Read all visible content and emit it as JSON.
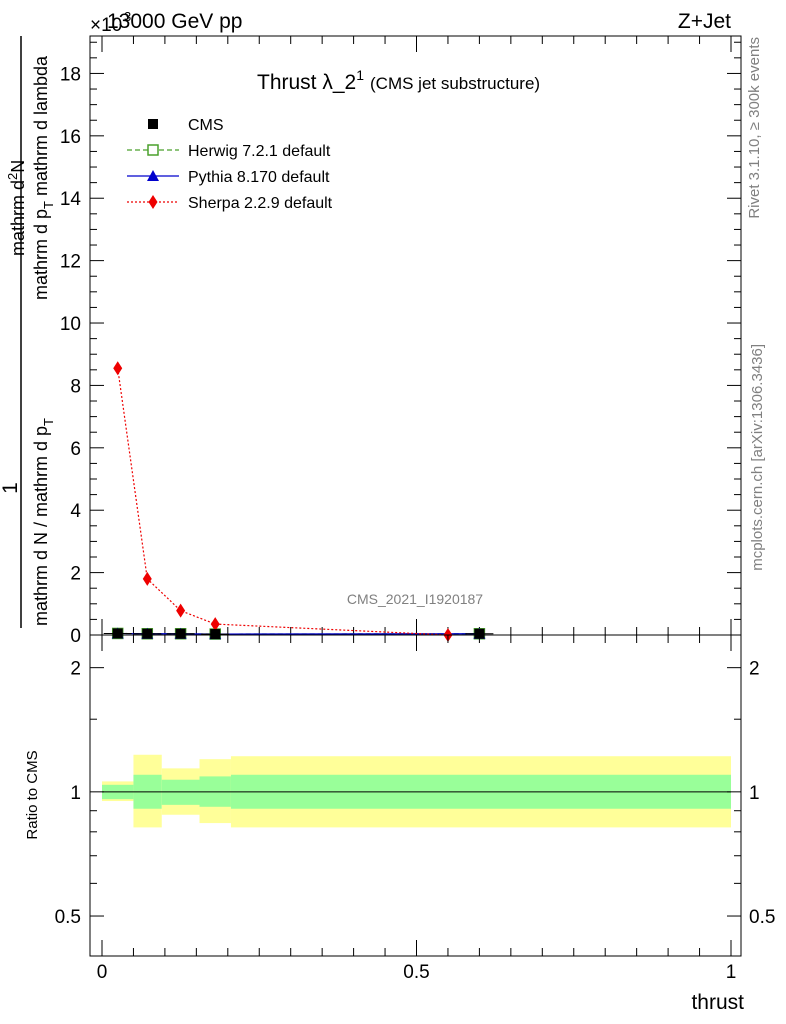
{
  "header": {
    "left": "13000 GeV pp",
    "right": "Z+Jet",
    "exponent": "×10",
    "exponent_power": "3"
  },
  "side": {
    "rivet": "Rivet 3.1.10, ≥ 300k events",
    "mcplots": "mcplots.cern.ch [arXiv:1306.3436]"
  },
  "main_plot": {
    "title": "Thrust λ_2",
    "title_sup": "1",
    "title_suffix": "(CMS jet substructure)",
    "ylabel_num": "1",
    "ylabel_den1": "mathrm d N / mathrm d p",
    "ylabel_den1_sub": "T",
    "ylabel_den2": "mathrm d",
    "ylabel_den2_sup": "2",
    "ylabel_den2_tail": "N",
    "ylabel_den3": "mathrm d p",
    "ylabel_den3_sub": "T",
    "ylabel_den3_tail": " mathrm d lambda",
    "watermark": "CMS_2021_I1920187"
  },
  "ratio_plot": {
    "ylabel": "Ratio to CMS",
    "xlabel": "thrust"
  },
  "legend": [
    {
      "name": "CMS",
      "color": "#000000",
      "marker": "square",
      "line": "none"
    },
    {
      "name": "Herwig 7.2.1 default",
      "color": "#4aa02c",
      "marker": "open-square",
      "line": "dashed"
    },
    {
      "name": "Pythia 8.170 default",
      "color": "#0000cc",
      "marker": "triangle",
      "line": "solid"
    },
    {
      "name": "Sherpa 2.2.9 default",
      "color": "#ee0000",
      "marker": "diamond",
      "line": "dotted"
    }
  ],
  "chart_data": [
    {
      "type": "line",
      "title": "Thrust λ_2^1 (CMS jet substructure)",
      "xlim": [
        0,
        1
      ],
      "ylim": [
        0,
        19.2
      ],
      "y_scale_factor": "×10^3",
      "yticks": [
        0,
        2,
        4,
        6,
        8,
        10,
        12,
        14,
        16,
        18
      ],
      "ytick_labels": [
        "0",
        "2",
        "4",
        "6",
        "8",
        "10",
        "12",
        "14",
        "16",
        "18"
      ],
      "bin_edges": [
        0,
        0.05,
        0.095,
        0.155,
        0.205,
        1.0
      ],
      "series": [
        {
          "name": "CMS",
          "x": [
            0.025,
            0.072,
            0.125,
            0.18,
            0.6
          ],
          "y": [
            0.05,
            0.04,
            0.04,
            0.03,
            0.04
          ]
        },
        {
          "name": "Herwig 7.2.1 default",
          "x": [
            0.025,
            0.072,
            0.125,
            0.18,
            0.6
          ],
          "y": [
            0.05,
            0.04,
            0.04,
            0.03,
            0.04
          ]
        },
        {
          "name": "Pythia 8.170 default",
          "x": [
            0.025,
            0.072,
            0.125,
            0.18,
            0.6
          ],
          "y": [
            0.05,
            0.04,
            0.04,
            0.03,
            0.04
          ]
        },
        {
          "name": "Sherpa 2.2.9 default",
          "x": [
            0.025,
            0.072,
            0.125,
            0.18,
            0.55
          ],
          "y": [
            8.55,
            1.8,
            0.78,
            0.35,
            0.0
          ]
        }
      ]
    },
    {
      "type": "area",
      "xlabel": "thrust",
      "ylabel": "Ratio to CMS",
      "xlim": [
        0,
        1
      ],
      "ylim": [
        0.4,
        2.4
      ],
      "y_scale": "log",
      "xticks": [
        0,
        0.5,
        1
      ],
      "xtick_labels": [
        "0",
        "0.5",
        "1"
      ],
      "yticks": [
        0.5,
        1,
        2
      ],
      "ytick_labels": [
        "0.5",
        "1",
        "2"
      ],
      "bands": {
        "bin_edges": [
          0,
          0.05,
          0.095,
          0.155,
          0.205,
          1.0
        ],
        "green_low": [
          0.96,
          0.91,
          0.93,
          0.92,
          0.91
        ],
        "green_high": [
          1.04,
          1.1,
          1.07,
          1.09,
          1.1
        ],
        "yellow_low": [
          0.95,
          0.82,
          0.88,
          0.84,
          0.82
        ],
        "yellow_high": [
          1.06,
          1.23,
          1.14,
          1.2,
          1.22
        ]
      },
      "reference": 1
    }
  ]
}
